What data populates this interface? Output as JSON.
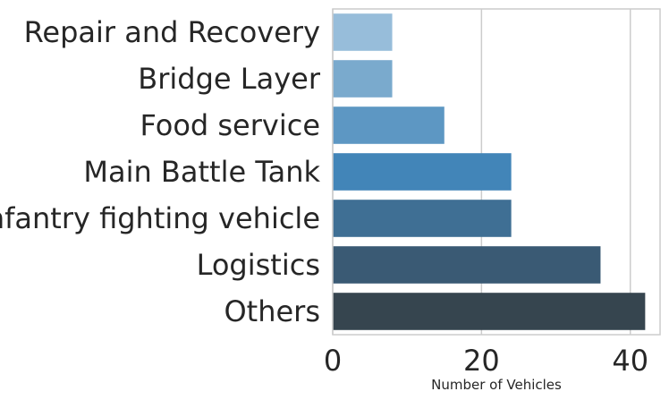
{
  "chart_data": {
    "type": "bar",
    "orientation": "horizontal",
    "categories": [
      "Repair and Recovery",
      "Bridge Layer",
      "Food service",
      "Main Battle Tank",
      "Iinfantry fighting vehicle",
      "Logistics",
      "Others"
    ],
    "values": [
      8,
      8,
      15,
      24,
      24,
      36,
      42
    ],
    "colors": [
      "#97bdda",
      "#7aaacd",
      "#5d97c3",
      "#4285b8",
      "#3f6f94",
      "#3a5a74",
      "#36454f"
    ],
    "title": "",
    "xlabel": "Number of Vehicles",
    "ylabel": "",
    "xlim": [
      0,
      44
    ],
    "xticks": [
      0,
      20,
      40
    ],
    "xtick_labels": [
      "0",
      "20",
      "40"
    ],
    "grid": "vertical"
  }
}
